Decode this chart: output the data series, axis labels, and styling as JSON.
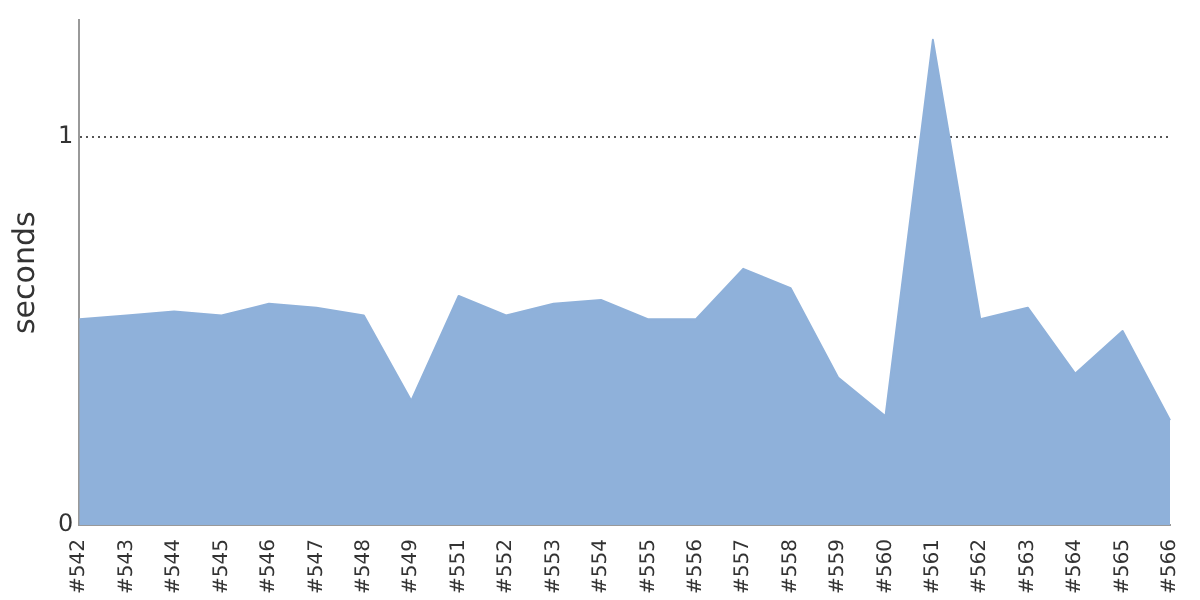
{
  "chart_data": {
    "type": "area",
    "ylabel": "seconds",
    "categories": [
      "#542",
      "#543",
      "#544",
      "#545",
      "#546",
      "#547",
      "#548",
      "#549",
      "#551",
      "#552",
      "#553",
      "#554",
      "#555",
      "#556",
      "#557",
      "#558",
      "#559",
      "#560",
      "#561",
      "#562",
      "#563",
      "#564",
      "#565",
      "#566"
    ],
    "series": [
      {
        "color": "#8fb1da",
        "values": [
          0.53,
          0.54,
          0.55,
          0.54,
          0.57,
          0.56,
          0.54,
          0.32,
          0.59,
          0.54,
          0.57,
          0.58,
          0.53,
          0.53,
          0.66,
          0.61,
          0.38,
          0.28,
          1.25,
          0.53,
          0.56,
          0.39,
          0.5,
          0.27
        ]
      }
    ],
    "ylim": [
      0,
      1.3
    ],
    "yticks": [
      0,
      1
    ],
    "grid": "y",
    "line_style": "dotted",
    "marker": "none",
    "legend": false
  }
}
